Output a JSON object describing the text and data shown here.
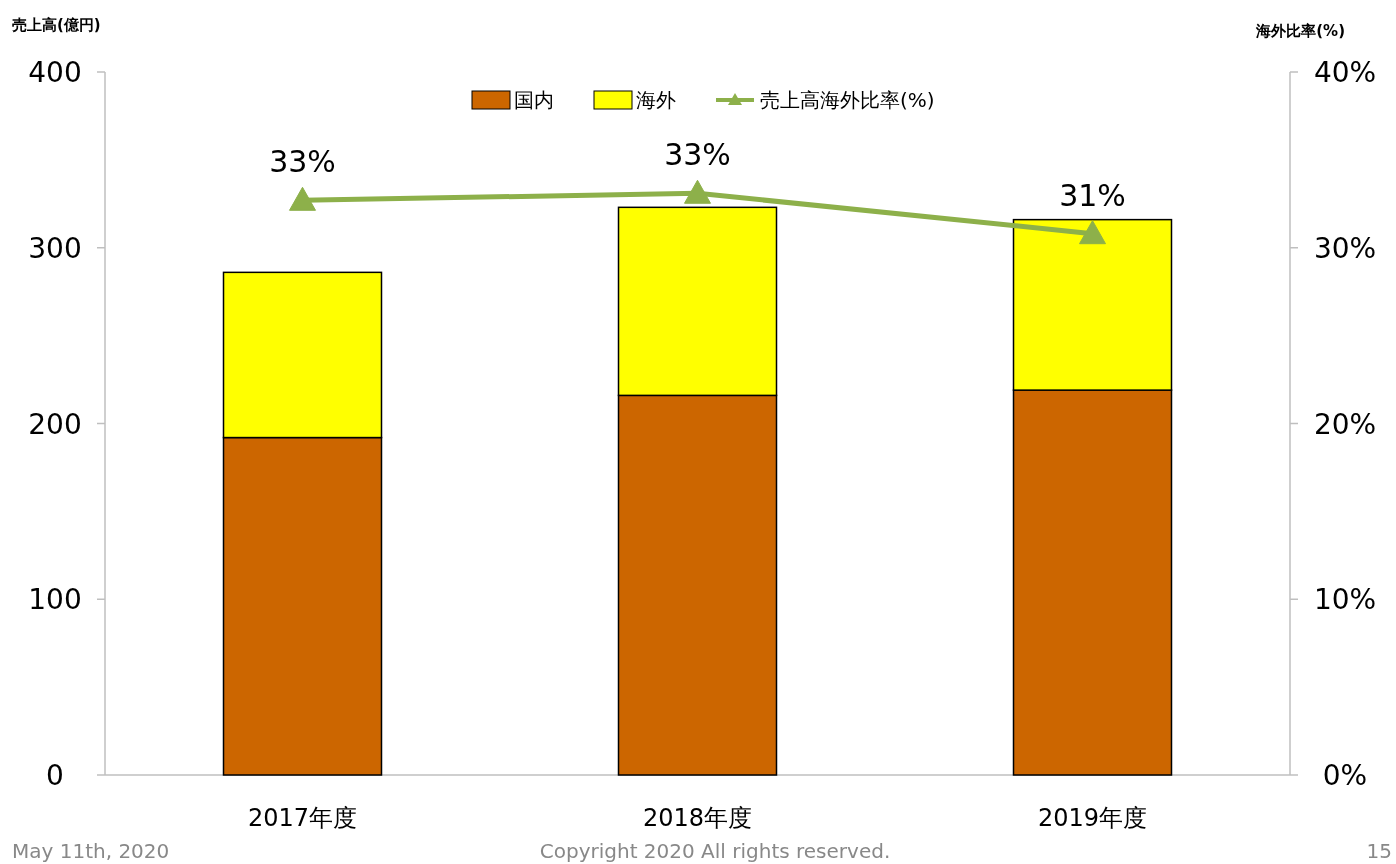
{
  "chart_data": {
    "type": "bar",
    "stacked": true,
    "ylabel": "売上高(億円)",
    "y2label": "海外比率(%)",
    "categories": [
      "2017年度",
      "2018年度",
      "2019年度"
    ],
    "series": [
      {
        "name": "国内",
        "color": "#cc6600",
        "values": [
          192,
          216,
          219
        ]
      },
      {
        "name": "海外",
        "color": "#ffff00",
        "values": [
          94,
          107,
          97
        ]
      },
      {
        "name": "売上高海外比率(%)",
        "type": "line",
        "axis": "y2",
        "color": "#8db04a",
        "values": [
          32.7,
          33.1,
          30.8
        ],
        "value_labels": [
          "33%",
          "33%",
          "31%"
        ]
      }
    ],
    "ylim": [
      0,
      400
    ],
    "yticks": [
      0,
      100,
      200,
      300,
      400
    ],
    "y2lim": [
      0,
      40
    ],
    "y2ticks": [
      {
        "value": 0,
        "label": "0%"
      },
      {
        "value": 10,
        "label": "10%"
      },
      {
        "value": 20,
        "label": "20%"
      },
      {
        "value": 30,
        "label": "30%"
      },
      {
        "value": 40,
        "label": "40%"
      }
    ],
    "grid": false,
    "legend": "top",
    "marker": "triangle",
    "annotations": [
      "May 11th, 2020",
      "Copyright 2020 All rights reserved.",
      "15"
    ]
  }
}
